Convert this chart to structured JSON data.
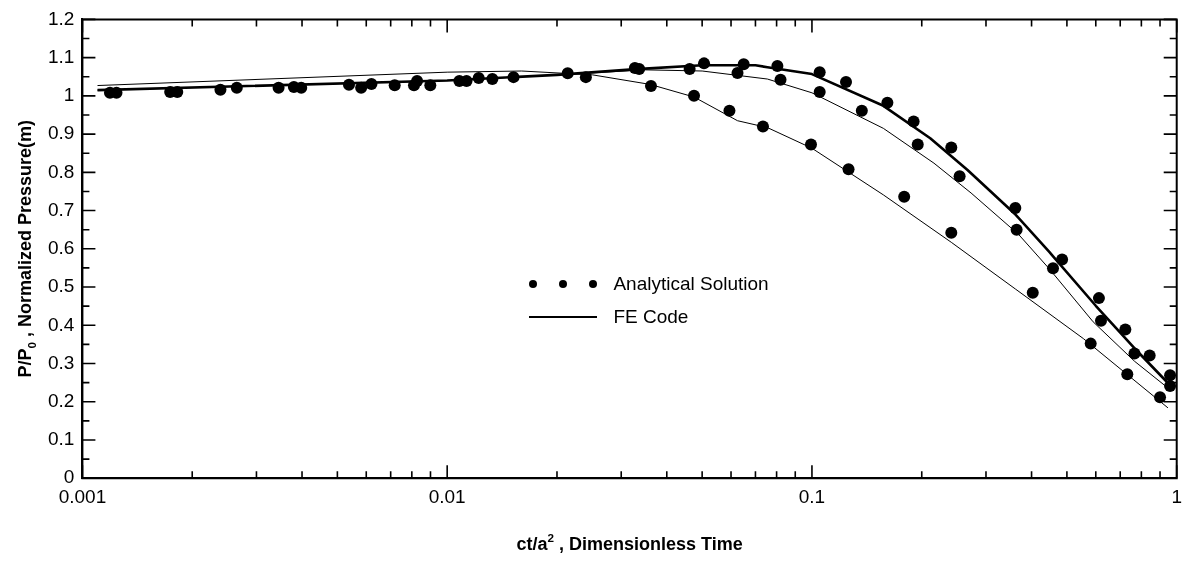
{
  "chart_data": {
    "type": "scatter",
    "xlabel": "ct/a$^{2}$ , Dimensionless Time",
    "ylabel": "P/P$_{0}$ , Normalized Pressure(m)",
    "log": "x",
    "xlim": [
      0.001,
      1
    ],
    "xticks": [
      0.001,
      {
        "value": 0.002,
        "label": null
      },
      {
        "value": 0.003,
        "label": null
      },
      {
        "value": 0.004,
        "label": null
      },
      {
        "value": 0.005,
        "label": null
      },
      {
        "value": 0.006,
        "label": null
      },
      {
        "value": 0.007,
        "label": null
      },
      {
        "value": 0.008,
        "label": null
      },
      {
        "value": 0.009,
        "label": null
      },
      0.01,
      {
        "value": 0.02,
        "label": null
      },
      {
        "value": 0.03,
        "label": null
      },
      {
        "value": 0.04,
        "label": null
      },
      {
        "value": 0.05,
        "label": null
      },
      {
        "value": 0.06,
        "label": null
      },
      {
        "value": 0.07,
        "label": null
      },
      {
        "value": 0.08,
        "label": null
      },
      {
        "value": 0.09,
        "label": null
      },
      0.1,
      {
        "value": 0.2,
        "label": null
      },
      {
        "value": 0.3,
        "label": null
      },
      {
        "value": 0.4,
        "label": null
      },
      {
        "value": 0.5,
        "label": null
      },
      {
        "value": 0.6,
        "label": null
      },
      {
        "value": 0.7,
        "label": null
      },
      {
        "value": 0.8,
        "label": null
      },
      {
        "value": 0.9,
        "label": null
      },
      1
    ],
    "ylim": [
      0,
      1.2
    ],
    "yticks": [
      0,
      {
        "value": 0.05,
        "label": null
      },
      0.1,
      {
        "value": 0.15,
        "label": null
      },
      0.2,
      {
        "value": 0.25,
        "label": null
      },
      0.3,
      {
        "value": 0.35,
        "label": null
      },
      0.4,
      {
        "value": 0.45,
        "label": null
      },
      0.5,
      {
        "value": 0.55,
        "label": null
      },
      0.6,
      {
        "value": 0.65,
        "label": null
      },
      0.7,
      {
        "value": 0.75,
        "label": null
      },
      0.8,
      {
        "value": 0.85,
        "label": null
      },
      0.9,
      {
        "value": 0.95,
        "label": null
      },
      1,
      {
        "value": 1.05,
        "label": null
      },
      1.1,
      {
        "value": 1.15,
        "label": null
      },
      1.2
    ],
    "grid": false,
    "legend": "center",
    "series": [
      {
        "name": "Analytical Solution",
        "type": "scatter",
        "marker": "circle",
        "color": "#000000",
        "x": [
          0.00119,
          0.00124,
          0.00174,
          0.00182,
          0.00239,
          0.00265,
          0.00345,
          0.0038,
          0.00398,
          0.00538,
          0.00581,
          0.0062,
          0.00718,
          0.00811,
          0.00827,
          0.00899,
          0.0108,
          0.0113,
          0.0122,
          0.0133,
          0.0152,
          0.0214,
          0.024,
          0.0327,
          0.0336,
          0.0362,
          0.0462,
          0.0506,
          0.0475,
          0.0594,
          0.0625,
          0.065,
          0.0734,
          0.0804,
          0.082,
          0.0994,
          0.105,
          0.105,
          0.124,
          0.137,
          0.126,
          0.161,
          0.19,
          0.179,
          0.195,
          0.241,
          0.254,
          0.241,
          0.361,
          0.364,
          0.403,
          0.485,
          0.458,
          0.612,
          0.62,
          0.581,
          0.723,
          0.766,
          0.732,
          0.843,
          0.9,
          0.959,
          0.959
        ],
        "values": [
          1.008,
          1.008,
          1.01,
          1.01,
          1.016,
          1.021,
          1.021,
          1.023,
          1.021,
          1.029,
          1.021,
          1.031,
          1.028,
          1.028,
          1.039,
          1.028,
          1.039,
          1.039,
          1.047,
          1.044,
          1.049,
          1.059,
          1.049,
          1.073,
          1.07,
          1.026,
          1.07,
          1.085,
          1.0,
          0.961,
          1.06,
          1.083,
          0.92,
          1.078,
          1.042,
          0.873,
          1.062,
          1.01,
          1.036,
          0.961,
          0.808,
          0.982,
          0.933,
          0.736,
          0.873,
          0.865,
          0.79,
          0.642,
          0.707,
          0.65,
          0.485,
          0.572,
          0.549,
          0.471,
          0.412,
          0.352,
          0.389,
          0.326,
          0.272,
          0.321,
          0.212,
          0.269,
          0.241
        ]
      },
      {
        "name": "FE Code",
        "type": "line",
        "marker": "none",
        "line_style": "solid",
        "color": "#000000",
        "x": [
          0.0011,
          0.01,
          0.02,
          0.033,
          0.05,
          0.07,
          0.0755,
          0.1,
          0.157,
          0.211,
          0.267,
          0.362,
          0.448,
          0.6,
          0.78,
          0.946
        ],
        "values": [
          1.015,
          1.04,
          1.055,
          1.07,
          1.08,
          1.08,
          1.075,
          1.057,
          0.974,
          0.889,
          0.806,
          0.689,
          0.591,
          0.451,
          0.332,
          0.249
        ]
      },
      {
        "type": "line",
        "marker": "none",
        "line_style": "solid",
        "color": "#000000",
        "x": [
          0.0011,
          0.01,
          0.02,
          0.035,
          0.05,
          0.0755,
          0.1,
          0.157,
          0.216,
          0.273,
          0.369,
          0.448,
          0.59,
          0.766,
          0.946
        ],
        "values": [
          1.015,
          1.04,
          1.055,
          1.068,
          1.065,
          1.044,
          1.008,
          0.915,
          0.824,
          0.746,
          0.637,
          0.547,
          0.409,
          0.306,
          0.236
        ]
      },
      {
        "type": "line",
        "marker": "none",
        "line_style": "solid",
        "color": "#000000",
        "x": [
          0.0011,
          0.01,
          0.016,
          0.025,
          0.036,
          0.0475,
          0.0625,
          0.0755,
          0.1,
          0.157,
          0.241,
          0.361,
          0.555,
          0.946
        ],
        "values": [
          1.027,
          1.062,
          1.065,
          1.055,
          1.03,
          0.997,
          0.935,
          0.917,
          0.863,
          0.741,
          0.617,
          0.495,
          0.365,
          0.184
        ]
      }
    ]
  }
}
